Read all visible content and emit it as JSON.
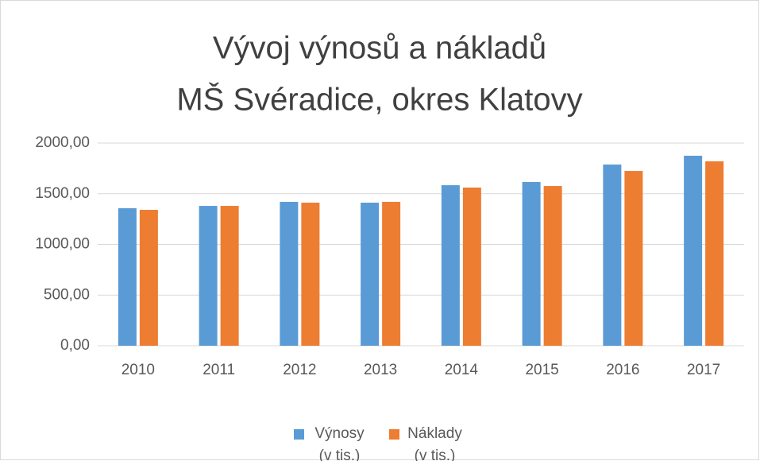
{
  "chart_data": {
    "type": "bar",
    "title": [
      "Vývoj výnosů a nákladů",
      "MŠ Svéradice, okres Klatovy"
    ],
    "categories": [
      "2010",
      "2011",
      "2012",
      "2013",
      "2014",
      "2015",
      "2016",
      "2017"
    ],
    "series": [
      {
        "name": "Výnosy (v tis.)",
        "color": "#5b9bd5",
        "values": [
          1357,
          1380,
          1420,
          1412,
          1584,
          1616,
          1788,
          1875
        ]
      },
      {
        "name": "Náklady (v tis.)",
        "color": "#ed7d31",
        "values": [
          1341,
          1380,
          1412,
          1420,
          1561,
          1576,
          1725,
          1820
        ]
      }
    ],
    "ylim": [
      0,
      2000
    ],
    "yticks": [
      {
        "value": 0,
        "label": "0,00"
      },
      {
        "value": 500,
        "label": "500,00"
      },
      {
        "value": 1000,
        "label": "1000,00"
      },
      {
        "value": 1500,
        "label": "1500,00"
      },
      {
        "value": 2000,
        "label": "2000,00"
      }
    ],
    "grid": true,
    "legend": "bottom"
  }
}
